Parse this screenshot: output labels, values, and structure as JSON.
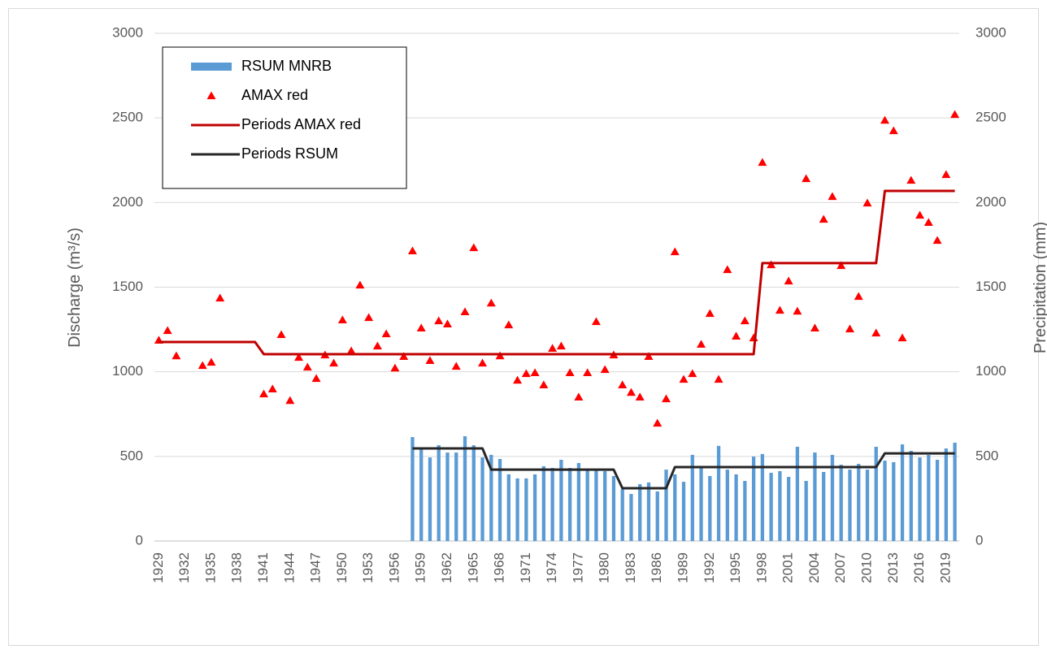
{
  "chart_data": {
    "type": "combo",
    "y_label": "Discharge (m³/s)",
    "y2_label": "Precipitation (mm)",
    "categories": [
      "1929",
      null,
      null,
      "1932",
      null,
      null,
      "1935",
      null,
      null,
      "1938",
      null,
      null,
      "1941",
      null,
      null,
      "1944",
      null,
      null,
      "1947",
      null,
      null,
      "1950",
      null,
      null,
      "1953",
      null,
      null,
      "1956",
      null,
      null,
      "1959",
      null,
      null,
      "1962",
      null,
      null,
      "1965",
      null,
      null,
      "1968",
      null,
      null,
      "1971",
      null,
      null,
      "1974",
      null,
      null,
      "1977",
      null,
      null,
      "1980",
      null,
      null,
      "1983",
      null,
      null,
      "1986",
      null,
      null,
      "1989",
      null,
      null,
      "1992",
      null,
      null,
      "1995",
      null,
      null,
      "1998",
      null,
      null,
      "2001",
      null,
      null,
      "2004",
      null,
      null,
      "2007",
      null,
      null,
      "2010",
      null,
      null,
      "2013",
      null,
      null,
      "2016",
      null,
      null,
      "2019",
      null
    ],
    "ylim": [
      0,
      3000
    ],
    "yticks": [
      0,
      500,
      1000,
      1500,
      2000,
      2500,
      3000
    ],
    "y2lim": [
      0,
      3000
    ],
    "y2ticks": [
      0,
      500,
      1000,
      1500,
      2000,
      2500,
      3000
    ],
    "grid": true,
    "legend": "top-left",
    "series": [
      {
        "name": "RSUM MNRB",
        "type": "bar",
        "axis": "y2",
        "color": "#5b9bd5",
        "values": [
          null,
          null,
          null,
          null,
          null,
          null,
          null,
          null,
          null,
          null,
          null,
          null,
          null,
          null,
          null,
          null,
          null,
          null,
          null,
          null,
          null,
          null,
          null,
          null,
          null,
          null,
          null,
          null,
          null,
          614,
          552,
          494,
          566,
          523,
          523,
          619,
          566,
          494,
          509,
          485,
          394,
          370,
          370,
          394,
          442,
          432,
          480,
          432,
          461,
          422,
          422,
          413,
          384,
          307,
          278,
          336,
          346,
          293,
          422,
          394,
          350,
          509,
          437,
          384,
          562,
          422,
          394,
          355,
          499,
          514,
          403,
          413,
          379,
          557,
          355,
          523,
          408,
          509,
          451,
          422,
          456,
          422,
          557,
          475,
          466,
          571,
          533,
          494,
          509,
          480,
          547,
          581
        ]
      },
      {
        "name": "AMAX red",
        "type": "scatter",
        "color": "#ff0000",
        "values": [
          1186,
          1243,
          1094,
          null,
          null,
          1037,
          1056,
          1435,
          null,
          null,
          null,
          null,
          869,
          898,
          1219,
          830,
          1085,
          1027,
          960,
          1099,
          1051,
          1306,
          1123,
          1512,
          1320,
          1152,
          1224,
          1022,
          1090,
          1714,
          1258,
          1066,
          1301,
          1282,
          1032,
          1354,
          1733,
          1051,
          1406,
          1094,
          1277,
          950,
          989,
          994,
          922,
          1138,
          1152,
          994,
          850,
          994,
          1296,
          1013,
          1099,
          922,
          878,
          850,
          1090,
          696,
          840,
          1709,
          955,
          989,
          1162,
          1344,
          955,
          1603,
          1210,
          1301,
          1200,
          2237,
          1632,
          1363,
          1536,
          1358,
          2141,
          1258,
          1901,
          2035,
          1627,
          1253,
          1445,
          1997,
          1229,
          2486,
          2424,
          1200,
          2131,
          1925,
          1882,
          1776,
          2165,
          2520
        ]
      },
      {
        "name": "Periods AMAX red",
        "type": "line",
        "color": "#c00000",
        "values": [
          1176,
          1176,
          1176,
          1176,
          1176,
          1176,
          1176,
          1176,
          1176,
          1176,
          1176,
          1176,
          1104,
          1104,
          1104,
          1104,
          1104,
          1104,
          1104,
          1104,
          1104,
          1104,
          1104,
          1104,
          1104,
          1104,
          1104,
          1104,
          1104,
          1104,
          1104,
          1104,
          1104,
          1104,
          1104,
          1104,
          1104,
          1104,
          1104,
          1104,
          1104,
          1104,
          1104,
          1104,
          1104,
          1104,
          1104,
          1104,
          1104,
          1104,
          1104,
          1104,
          1104,
          1104,
          1104,
          1104,
          1104,
          1104,
          1104,
          1104,
          1104,
          1104,
          1104,
          1104,
          1104,
          1104,
          1104,
          1104,
          1104,
          1642,
          1642,
          1642,
          1642,
          1642,
          1642,
          1642,
          1642,
          1642,
          1642,
          1642,
          1642,
          1642,
          1642,
          2069,
          2069,
          2069,
          2069,
          2069,
          2069,
          2069,
          2069,
          2069
        ]
      },
      {
        "name": "Periods RSUM",
        "type": "line",
        "axis": "y2",
        "color": "#262626",
        "values": [
          null,
          null,
          null,
          null,
          null,
          null,
          null,
          null,
          null,
          null,
          null,
          null,
          null,
          null,
          null,
          null,
          null,
          null,
          null,
          null,
          null,
          null,
          null,
          null,
          null,
          null,
          null,
          null,
          null,
          547,
          547,
          547,
          547,
          547,
          547,
          547,
          547,
          547,
          422,
          422,
          422,
          422,
          422,
          422,
          422,
          422,
          422,
          422,
          422,
          422,
          422,
          422,
          422,
          312,
          312,
          312,
          312,
          312,
          312,
          437,
          437,
          437,
          437,
          437,
          437,
          437,
          437,
          437,
          437,
          437,
          437,
          437,
          437,
          437,
          437,
          437,
          437,
          437,
          437,
          437,
          437,
          437,
          437,
          518,
          518,
          518,
          518,
          518,
          518,
          518,
          518,
          518
        ]
      }
    ]
  }
}
